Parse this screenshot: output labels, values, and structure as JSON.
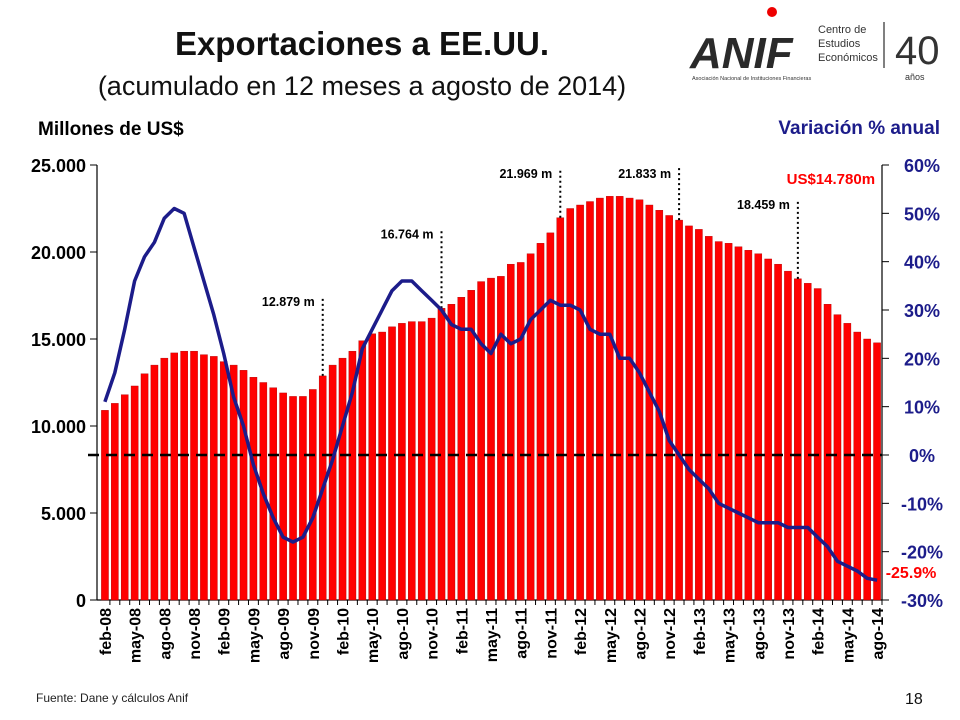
{
  "chart_data": {
    "type": "bar_line",
    "title": "Exportaciones a EE.UU.",
    "subtitle": "(acumulado en 12 meses a agosto de 2014)",
    "y_label": "Millones de US$",
    "y2_label": "Variación % anual",
    "source": "Fuente: Dane y cálculos Anif",
    "page_number": "18",
    "logo": {
      "name": "ANIF",
      "tagline": "Asociación Nacional de Instituciones Financieras",
      "center": [
        "Centro de",
        "Estudios",
        "Económicos"
      ],
      "anniversary": "40",
      "anniversary_sub": "años"
    },
    "categories": [
      "feb-08",
      null,
      null,
      "may-08",
      null,
      null,
      "ago-08",
      null,
      null,
      "nov-08",
      null,
      null,
      "feb-09",
      null,
      null,
      "may-09",
      null,
      null,
      "ago-09",
      null,
      null,
      "nov-09",
      null,
      null,
      "feb-10",
      null,
      null,
      "may-10",
      null,
      null,
      "ago-10",
      null,
      null,
      "nov-10",
      null,
      null,
      "feb-11",
      null,
      null,
      "may-11",
      null,
      null,
      "ago-11",
      null,
      null,
      "nov-11",
      null,
      null,
      "feb-12",
      null,
      null,
      "may-12",
      null,
      null,
      "ago-12",
      null,
      null,
      "nov-12",
      null,
      null,
      "feb-13",
      null,
      null,
      "may-13",
      null,
      null,
      "ago-13",
      null,
      null,
      "nov-13",
      null,
      null,
      "feb-14",
      null,
      null,
      "may-14",
      null,
      null,
      "ago-14"
    ],
    "series": [
      {
        "name": "Exportaciones (millones de US$)",
        "color": "#ff0000",
        "values": [
          10900,
          11300,
          11800,
          12300,
          13000,
          13500,
          13900,
          14200,
          14300,
          14300,
          14100,
          14000,
          13700,
          13500,
          13200,
          12800,
          12500,
          12200,
          11900,
          11700,
          11700,
          12100,
          12879,
          13500,
          13900,
          14300,
          14900,
          15300,
          15400,
          15700,
          15900,
          16000,
          16000,
          16200,
          16764,
          17000,
          17400,
          17800,
          18300,
          18500,
          18600,
          19300,
          19400,
          19900,
          20500,
          21100,
          21969,
          22500,
          22700,
          22900,
          23100,
          23200,
          23200,
          23100,
          23000,
          22700,
          22400,
          22100,
          21833,
          21500,
          21300,
          20900,
          20600,
          20500,
          20300,
          20100,
          19900,
          19600,
          19300,
          18900,
          18459,
          18200,
          17900,
          17000,
          16400,
          15900,
          15400,
          15000,
          14780
        ],
        "value_labels": [
          null,
          null,
          null,
          null,
          null,
          null,
          null,
          null,
          null,
          null,
          null,
          null,
          null,
          null,
          null,
          null,
          null,
          null,
          null,
          null,
          null,
          null,
          "12.879 m",
          null,
          null,
          null,
          null,
          null,
          null,
          null,
          null,
          null,
          null,
          null,
          "16.764 m",
          null,
          null,
          null,
          null,
          null,
          null,
          null,
          null,
          null,
          null,
          null,
          "21.969 m",
          null,
          null,
          null,
          null,
          null,
          null,
          null,
          null,
          null,
          null,
          null,
          "21.833 m",
          null,
          null,
          null,
          null,
          null,
          null,
          null,
          null,
          null,
          null,
          null,
          "18.459 m",
          null,
          null,
          null,
          null,
          null,
          null,
          null,
          "US$14.780m"
        ]
      },
      {
        "name": "Variación % anual",
        "color": "#1c1c8a",
        "axis": "y2",
        "values": [
          11,
          17,
          26,
          36,
          41,
          44,
          49,
          51,
          50,
          43,
          36,
          29,
          21,
          12,
          6,
          -2,
          -8,
          -13,
          -17,
          -18,
          -17,
          -13,
          -7,
          -1,
          6,
          13,
          22,
          26,
          30,
          34,
          36,
          36,
          34,
          32,
          30,
          27,
          26,
          26,
          23,
          21,
          25,
          23,
          24,
          28,
          30,
          32,
          31,
          31,
          30,
          26,
          25,
          25,
          20,
          20,
          17,
          13,
          9,
          3,
          0,
          -3,
          -5,
          -7,
          -10,
          -11,
          -12,
          -13,
          -14,
          -14,
          -14,
          -15,
          -15,
          -15,
          -17,
          -19,
          -22,
          -23,
          -24,
          -25.5,
          -25.9
        ],
        "value_labels": [
          null,
          null,
          null,
          null,
          null,
          null,
          null,
          null,
          null,
          null,
          null,
          null,
          null,
          null,
          null,
          null,
          null,
          null,
          null,
          null,
          null,
          null,
          null,
          null,
          null,
          null,
          null,
          null,
          null,
          null,
          null,
          null,
          null,
          null,
          null,
          null,
          null,
          null,
          null,
          null,
          null,
          null,
          null,
          null,
          null,
          null,
          null,
          null,
          null,
          null,
          null,
          null,
          null,
          null,
          null,
          null,
          null,
          null,
          null,
          null,
          null,
          null,
          null,
          null,
          null,
          null,
          null,
          null,
          null,
          null,
          null,
          null,
          null,
          null,
          null,
          null,
          null,
          null,
          "-25.9%"
        ]
      }
    ],
    "ylim": [
      0,
      25000
    ],
    "yticks": [
      {
        "value": 0,
        "label": "0"
      },
      {
        "value": 5000,
        "label": "5.000"
      },
      {
        "value": 10000,
        "label": "10.000"
      },
      {
        "value": 15000,
        "label": "15.000"
      },
      {
        "value": 20000,
        "label": "20.000"
      },
      {
        "value": 25000,
        "label": "25.000"
      }
    ],
    "y2lim": [
      -30,
      60
    ],
    "y2ticks": [
      {
        "value": -30,
        "label": "-30%"
      },
      {
        "value": -20,
        "label": "-20%"
      },
      {
        "value": -10,
        "label": "-10%"
      },
      {
        "value": 0,
        "label": "0%"
      },
      {
        "value": 10,
        "label": "10%"
      },
      {
        "value": 20,
        "label": "20%"
      },
      {
        "value": 30,
        "label": "30%"
      },
      {
        "value": 40,
        "label": "40%"
      },
      {
        "value": 50,
        "label": "50%"
      },
      {
        "value": 60,
        "label": "60%"
      }
    ]
  }
}
